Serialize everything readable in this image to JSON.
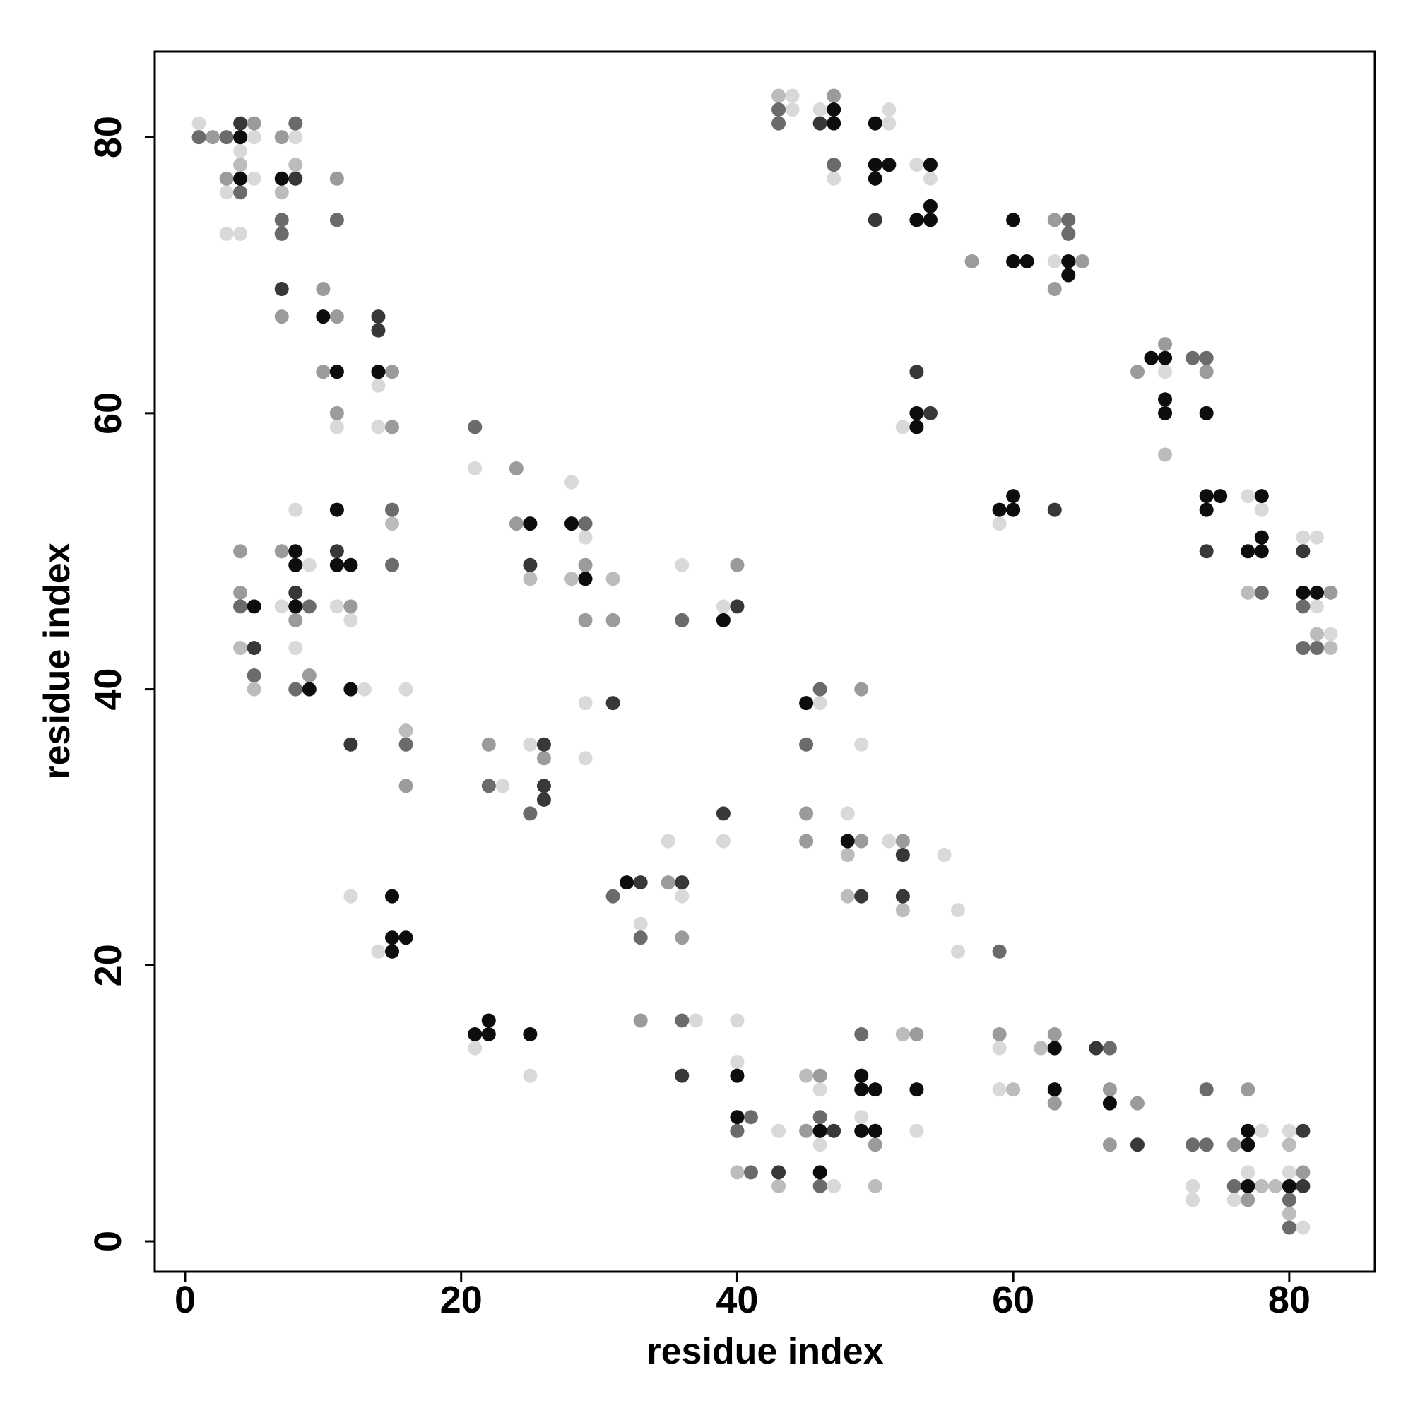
{
  "chart_data": {
    "type": "scatter",
    "xlabel": "residue index",
    "ylabel": "residue index",
    "xlim": [
      -2.2,
      86.2
    ],
    "ylim": [
      -2.2,
      86.2
    ],
    "xticks": [
      0,
      20,
      40,
      60,
      80
    ],
    "yticks": [
      0,
      20,
      40,
      60,
      80
    ],
    "series": [
      {
        "color": "#d9d9d9",
        "x": [
          1,
          5,
          4,
          5,
          3,
          3,
          4,
          8,
          11,
          14,
          14,
          8,
          9,
          7,
          8,
          11,
          12,
          13,
          16,
          12,
          14,
          21,
          28,
          29,
          29,
          29,
          23,
          25,
          36,
          39,
          39,
          35,
          36,
          33,
          21,
          25,
          37,
          40,
          40,
          44,
          44,
          46,
          47,
          51,
          51,
          53,
          54,
          52,
          63,
          59,
          71,
          77,
          78,
          81,
          82,
          82,
          83,
          46,
          49,
          48,
          51,
          55,
          56,
          56,
          43,
          46,
          46,
          47,
          49,
          53,
          59,
          59,
          73,
          73,
          77,
          76,
          78,
          80,
          80,
          81
        ],
        "values": [
          81,
          80,
          79,
          77,
          76,
          73,
          73,
          80,
          59,
          62,
          59,
          53,
          49,
          46,
          43,
          46,
          45,
          40,
          40,
          25,
          21,
          56,
          55,
          51,
          39,
          35,
          33,
          36,
          49,
          46,
          29,
          29,
          25,
          23,
          14,
          12,
          16,
          16,
          13,
          83,
          82,
          82,
          77,
          81,
          82,
          78,
          77,
          59,
          71,
          52,
          63,
          54,
          53,
          51,
          51,
          46,
          44,
          39,
          36,
          31,
          29,
          28,
          24,
          21,
          8,
          11,
          7,
          4,
          9,
          8,
          14,
          11,
          4,
          3,
          5,
          3,
          8,
          8,
          5,
          1
        ]
      },
      {
        "color": "#bcbcbc",
        "x": [
          4,
          7,
          8,
          4,
          5,
          15,
          16,
          25,
          28,
          31,
          40,
          43,
          71,
          77,
          82,
          83,
          48,
          48,
          52,
          43,
          45,
          50,
          52,
          60,
          62,
          78,
          79,
          80,
          80
        ],
        "values": [
          78,
          76,
          78,
          43,
          40,
          52,
          37,
          48,
          48,
          48,
          5,
          83,
          57,
          47,
          44,
          43,
          28,
          25,
          24,
          4,
          12,
          4,
          15,
          11,
          14,
          4,
          4,
          7,
          2
        ]
      },
      {
        "color": "#9b9b9b",
        "x": [
          2,
          5,
          3,
          7,
          11,
          10,
          7,
          11,
          10,
          11,
          15,
          15,
          4,
          4,
          7,
          8,
          9,
          12,
          16,
          24,
          24,
          29,
          29,
          31,
          22,
          26,
          40,
          35,
          36,
          33,
          47,
          57,
          63,
          65,
          63,
          69,
          71,
          74,
          83,
          49,
          45,
          45,
          49,
          52,
          46,
          45,
          50,
          53,
          59,
          63,
          63,
          67,
          67,
          69,
          76,
          77,
          77,
          81
        ],
        "values": [
          80,
          81,
          77,
          80,
          77,
          69,
          67,
          67,
          63,
          60,
          63,
          59,
          50,
          47,
          50,
          45,
          41,
          46,
          33,
          56,
          52,
          49,
          45,
          45,
          36,
          35,
          49,
          26,
          22,
          16,
          83,
          71,
          74,
          71,
          69,
          63,
          65,
          63,
          47,
          40,
          31,
          29,
          29,
          29,
          12,
          8,
          7,
          15,
          15,
          15,
          10,
          11,
          7,
          10,
          7,
          11,
          3,
          5
        ]
      },
      {
        "color": "#6b6b6b",
        "x": [
          1,
          3,
          4,
          8,
          7,
          7,
          11,
          4,
          5,
          8,
          9,
          15,
          15,
          16,
          21,
          29,
          22,
          25,
          36,
          31,
          33,
          36,
          41,
          40,
          41,
          43,
          43,
          47,
          64,
          64,
          73,
          74,
          78,
          81,
          81,
          82,
          46,
          45,
          59,
          46,
          46,
          49,
          67,
          73,
          74,
          74,
          76,
          80,
          80
        ],
        "values": [
          80,
          80,
          76,
          81,
          74,
          73,
          74,
          46,
          41,
          40,
          46,
          53,
          49,
          36,
          59,
          52,
          33,
          31,
          45,
          25,
          22,
          16,
          9,
          8,
          5,
          82,
          81,
          78,
          74,
          73,
          64,
          64,
          47,
          46,
          43,
          43,
          40,
          36,
          21,
          9,
          4,
          15,
          14,
          7,
          7,
          11,
          4,
          3,
          1
        ]
      },
      {
        "color": "#383838",
        "x": [
          4,
          8,
          7,
          14,
          14,
          5,
          8,
          11,
          12,
          25,
          31,
          26,
          26,
          26,
          40,
          39,
          33,
          36,
          36,
          46,
          50,
          53,
          54,
          63,
          74,
          81,
          52,
          49,
          52,
          43,
          47,
          69,
          66,
          81,
          81
        ],
        "values": [
          81,
          77,
          69,
          67,
          66,
          43,
          47,
          50,
          36,
          49,
          39,
          36,
          33,
          32,
          46,
          31,
          26,
          26,
          12,
          81,
          74,
          63,
          60,
          53,
          50,
          50,
          28,
          25,
          25,
          5,
          8,
          7,
          14,
          8,
          4
        ]
      },
      {
        "color": "#0d0d0d",
        "x": [
          4,
          4,
          7,
          10,
          11,
          14,
          5,
          8,
          8,
          8,
          9,
          11,
          11,
          12,
          12,
          15,
          15,
          16,
          15,
          25,
          28,
          29,
          39,
          32,
          21,
          22,
          22,
          25,
          40,
          40,
          47,
          47,
          50,
          50,
          51,
          50,
          54,
          54,
          53,
          54,
          53,
          53,
          60,
          60,
          61,
          64,
          64,
          59,
          60,
          60,
          70,
          71,
          71,
          71,
          74,
          74,
          75,
          74,
          78,
          78,
          77,
          78,
          81,
          82,
          45,
          48,
          46,
          46,
          49,
          49,
          50,
          49,
          50,
          53,
          63,
          63,
          67,
          77,
          77,
          77,
          80
        ],
        "values": [
          80,
          77,
          77,
          67,
          63,
          63,
          46,
          50,
          49,
          46,
          40,
          53,
          49,
          49,
          40,
          25,
          22,
          22,
          21,
          52,
          52,
          48,
          45,
          26,
          15,
          16,
          15,
          15,
          12,
          9,
          82,
          81,
          81,
          78,
          78,
          77,
          78,
          75,
          74,
          74,
          60,
          59,
          74,
          71,
          71,
          71,
          70,
          53,
          54,
          53,
          64,
          64,
          61,
          60,
          60,
          54,
          54,
          53,
          54,
          51,
          50,
          50,
          47,
          47,
          39,
          29,
          8,
          5,
          12,
          11,
          11,
          8,
          8,
          11,
          14,
          11,
          10,
          8,
          7,
          4,
          4
        ]
      }
    ]
  }
}
